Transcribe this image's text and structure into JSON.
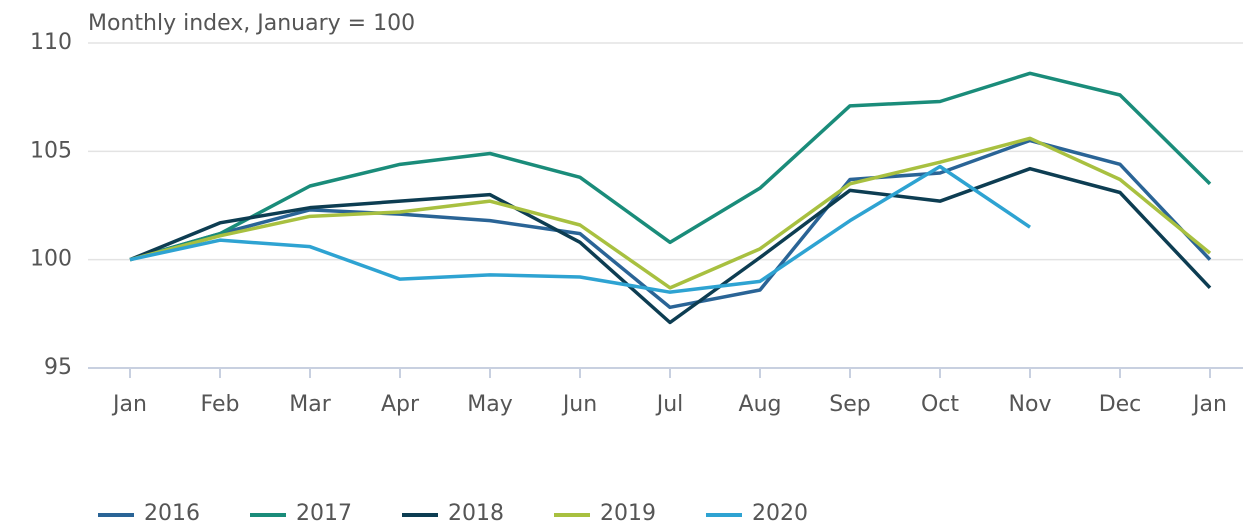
{
  "chart_data": {
    "type": "line",
    "title": "Monthly index, January = 100",
    "categories": [
      "Jan",
      "Feb",
      "Mar",
      "Apr",
      "May",
      "Jun",
      "Jul",
      "Aug",
      "Sep",
      "Oct",
      "Nov",
      "Dec",
      "Jan"
    ],
    "series": [
      {
        "name": "2016",
        "color": "#2a6496",
        "values": [
          100,
          101.2,
          102.3,
          102.1,
          101.8,
          101.2,
          97.8,
          98.6,
          103.7,
          104.0,
          105.5,
          104.4,
          100
        ]
      },
      {
        "name": "2017",
        "color": "#1a8c7a",
        "values": [
          100,
          101.2,
          103.4,
          104.4,
          104.9,
          103.8,
          100.8,
          103.3,
          107.1,
          107.3,
          108.6,
          107.6,
          103.5
        ]
      },
      {
        "name": "2018",
        "color": "#0d3d52",
        "values": [
          100,
          101.7,
          102.4,
          102.7,
          103.0,
          100.8,
          97.1,
          100.1,
          103.2,
          102.7,
          104.2,
          103.1,
          98.7
        ]
      },
      {
        "name": "2019",
        "color": "#a8c040",
        "values": [
          100,
          101.1,
          102.0,
          102.2,
          102.7,
          101.6,
          98.7,
          100.5,
          103.5,
          104.5,
          105.6,
          103.7,
          100.3
        ]
      },
      {
        "name": "2020",
        "color": "#2ea3d2",
        "values": [
          100,
          100.9,
          100.6,
          99.1,
          99.3,
          99.2,
          98.5,
          99.0,
          101.8,
          104.3,
          101.5,
          null,
          null
        ]
      }
    ],
    "ylim": [
      95,
      110
    ],
    "yticks": [
      95,
      100,
      105,
      110
    ],
    "grid": true,
    "legend": "bottom"
  }
}
